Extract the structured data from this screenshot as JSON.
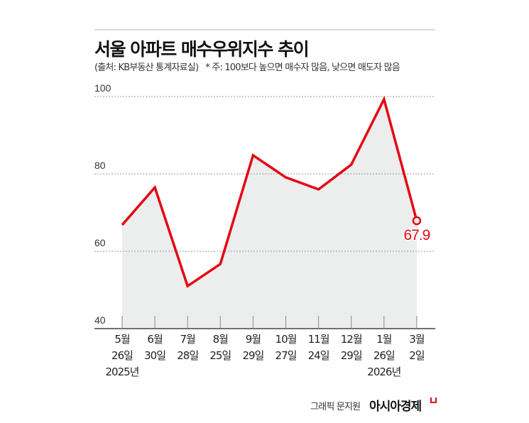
{
  "header": {
    "title": "서울 아파트 매수우위지수 추이",
    "source": "(출처: KB부동산 통계자료실)",
    "note": "* 주: 100보다 높으면 매수자 많음, 낮으면 매도자 많음"
  },
  "chart_data": {
    "type": "area",
    "title": "서울 아파트 매수우위지수 추이",
    "categories": [
      [
        "5월",
        "26일",
        "2025년"
      ],
      [
        "6월",
        "30일"
      ],
      [
        "7월",
        "28일"
      ],
      [
        "8월",
        "25일"
      ],
      [
        "9월",
        "29일"
      ],
      [
        "10월",
        "27일"
      ],
      [
        "11월",
        "24일"
      ],
      [
        "12월",
        "29일"
      ],
      [
        "1월",
        "26일",
        "2026년"
      ],
      [
        "3월",
        "2일"
      ]
    ],
    "values": [
      66.8,
      76.5,
      51.0,
      56.7,
      84.8,
      79.1,
      76.0,
      82.4,
      99.3,
      67.9
    ],
    "ylim": [
      40,
      100
    ],
    "yticks": [
      "100",
      "80",
      "60",
      "40"
    ],
    "grid": true,
    "last_label": "67.9",
    "line_color": "#e30613",
    "fill_color": "#eceded"
  },
  "footer": {
    "credit": "그래픽 문지원",
    "logo": "아시아경제"
  }
}
